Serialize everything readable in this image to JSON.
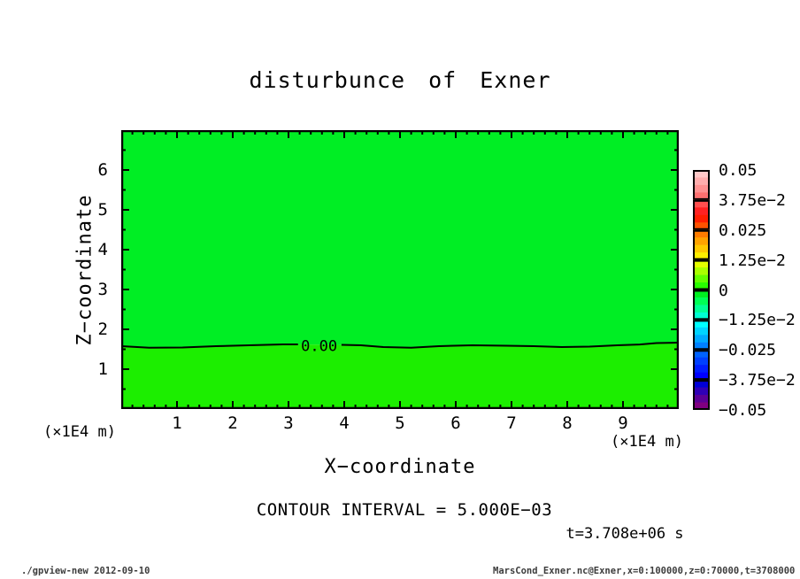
{
  "app": {
    "footer_left": "./gpview-new  2012-09-10",
    "footer_right": "MarsCond_Exner.nc@Exner,x=0:100000,z=0:70000,t=3708000"
  },
  "chart_data": {
    "type": "heatmap",
    "title": "disturbunce of Exner",
    "xlabel": "X−coordinate",
    "ylabel": "Z−coordinate",
    "x_unit_label": "(×1E4 m)",
    "y_unit_label": "(×1E4 m)",
    "xlim": [
      0,
      10
    ],
    "ylim": [
      0,
      7
    ],
    "x_major_ticks": [
      1,
      2,
      3,
      4,
      5,
      6,
      7,
      8,
      9
    ],
    "x_minor_step": 0.2,
    "y_major_ticks": [
      1,
      2,
      3,
      4,
      5,
      6
    ],
    "y_minor_step": 0.5,
    "grid": false,
    "contour_interval_label": "CONTOUR INTERVAL = 5.000E−03",
    "time_label": "t=3.708e+06 s",
    "fill_above_contour": "#00ee24",
    "fill_below_contour": "#1cee00",
    "contour": {
      "label": "0.00",
      "label_x": 3.55,
      "label_gap": [
        3.17,
        3.95
      ],
      "points": [
        [
          0,
          1.578
        ],
        [
          0.5,
          1.54
        ],
        [
          1.1,
          1.545
        ],
        [
          1.7,
          1.578
        ],
        [
          2.3,
          1.6
        ],
        [
          2.9,
          1.622
        ],
        [
          3.17,
          1.622
        ],
        [
          3.95,
          1.61
        ],
        [
          4.3,
          1.6
        ],
        [
          4.7,
          1.555
        ],
        [
          5.2,
          1.54
        ],
        [
          5.7,
          1.578
        ],
        [
          6.3,
          1.6
        ],
        [
          6.9,
          1.59
        ],
        [
          7.4,
          1.578
        ],
        [
          7.9,
          1.555
        ],
        [
          8.4,
          1.567
        ],
        [
          8.9,
          1.6
        ],
        [
          9.3,
          1.62
        ],
        [
          9.6,
          1.655
        ],
        [
          10,
          1.667
        ]
      ]
    },
    "colorbar": {
      "position": "right",
      "tick_labels": [
        "0.05",
        "3.75e−2",
        "0.025",
        "1.25e−2",
        "0",
        "−1.25e−2",
        "−0.025",
        "−3.75e−2",
        "−0.05"
      ],
      "segments": [
        [
          "#ffc8c8",
          "#ffadad",
          "#ff9191",
          "#ff7070"
        ],
        [
          "#ff4f4f",
          "#ff2222",
          "#ff1e00",
          "#ff5200"
        ],
        [
          "#ff7c00",
          "#ffa300",
          "#ffc900",
          "#ffef00"
        ],
        [
          "#e4ff00",
          "#aaff00",
          "#64ff00",
          "#28ff00"
        ],
        [
          "#00f020",
          "#00ff55",
          "#00ff95",
          "#00ffd2"
        ],
        [
          "#00ffff",
          "#00d4ff",
          "#00aaff",
          "#0080ff"
        ],
        [
          "#0062ff",
          "#0040ff",
          "#001eff",
          "#0000ff"
        ],
        [
          "#0000d8",
          "#3000b6",
          "#5c0096",
          "#800080"
        ]
      ]
    }
  }
}
